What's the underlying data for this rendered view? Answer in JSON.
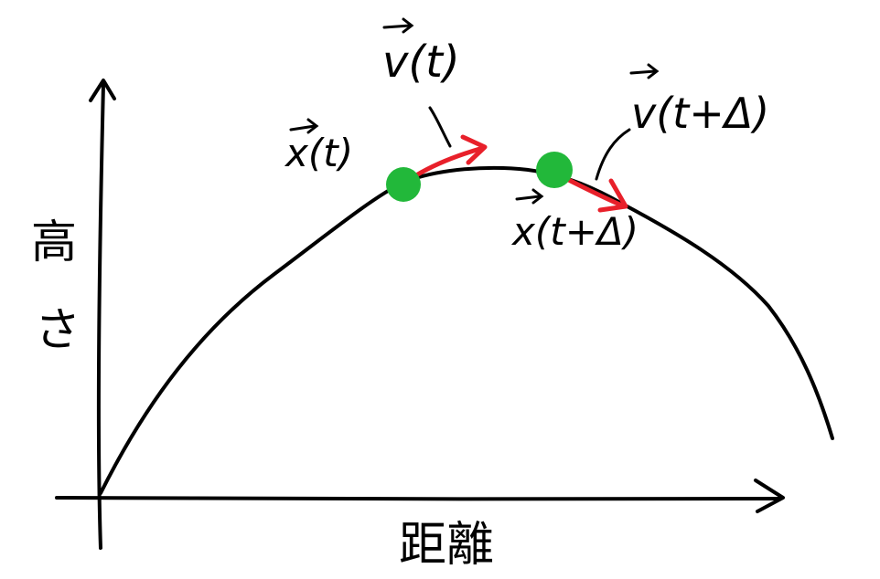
{
  "axes": {
    "y_label_chars": [
      "高",
      "さ"
    ],
    "x_label": "距離"
  },
  "points": {
    "x_t": {
      "vec_symbol": "x",
      "arg": "(t)"
    },
    "v_t": {
      "vec_symbol": "v",
      "arg": "(t)"
    },
    "x_t_dt": {
      "vec_symbol": "x",
      "arg": "(t+Δ)"
    },
    "v_t_dt": {
      "vec_symbol": "v",
      "arg": "(t+Δ)"
    }
  },
  "colors": {
    "ink": "#000000",
    "point": "#22b83a",
    "velocity": "#e8202a"
  }
}
